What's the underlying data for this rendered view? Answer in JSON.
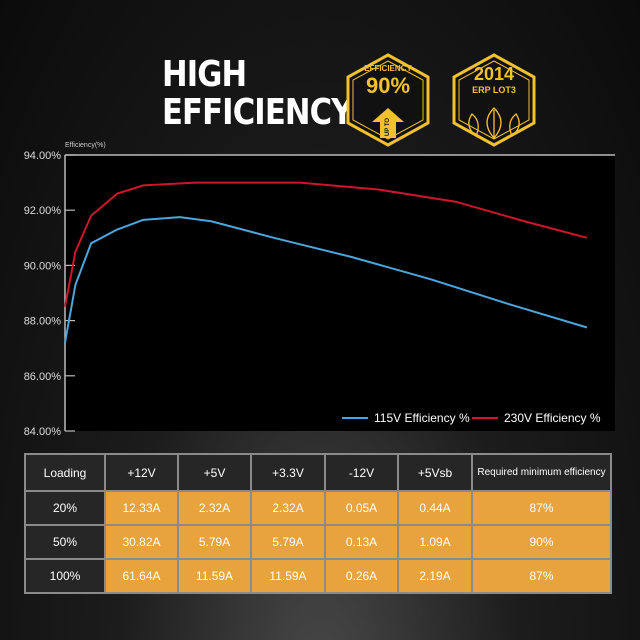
{
  "header": {
    "title_line1": "HIGH",
    "title_line2": "EFFICIENCY"
  },
  "badges": [
    {
      "top": "EFFICIENCY",
      "value": "90%",
      "arrow": "UP TO",
      "color": "#f2c12e"
    },
    {
      "top": "2014",
      "sub": "ERP LOT3",
      "icon": "leaf-icon",
      "color": "#f2c12e"
    }
  ],
  "chart_data": {
    "type": "line",
    "ylabel": "Efficiency(%)",
    "ylim": [
      84,
      94
    ],
    "yticks": [
      "84.00%",
      "86.00%",
      "88.00%",
      "90.00%",
      "92.00%",
      "94.00%"
    ],
    "grid": false,
    "legend": "bottom-right",
    "series": [
      {
        "name": "115V Efficiency %",
        "color": "#4aa6dc",
        "points": [
          [
            0,
            87.2
          ],
          [
            2,
            89.3
          ],
          [
            5,
            90.8
          ],
          [
            10,
            91.3
          ],
          [
            15,
            91.65
          ],
          [
            22,
            91.75
          ],
          [
            28,
            91.6
          ],
          [
            40,
            91.0
          ],
          [
            55,
            90.3
          ],
          [
            70,
            89.5
          ],
          [
            85,
            88.6
          ],
          [
            100,
            87.75
          ]
        ]
      },
      {
        "name": "230V Efficiency %",
        "color": "#d0152b",
        "points": [
          [
            0,
            88.5
          ],
          [
            2,
            90.5
          ],
          [
            5,
            91.8
          ],
          [
            10,
            92.6
          ],
          [
            15,
            92.9
          ],
          [
            25,
            93.0
          ],
          [
            45,
            93.0
          ],
          [
            60,
            92.75
          ],
          [
            75,
            92.3
          ],
          [
            88,
            91.6
          ],
          [
            100,
            91.0
          ]
        ]
      }
    ]
  },
  "table": {
    "headers": [
      "Loading",
      "+12V",
      "+5V",
      "+3.3V",
      "-12V",
      "+5Vsb",
      "Required minimum efficiency"
    ],
    "rows": [
      [
        "20%",
        "12.33A",
        "2.32A",
        "2.32A",
        "0.05A",
        "0.44A",
        "87%"
      ],
      [
        "50%",
        "30.82A",
        "5.79A",
        "5.79A",
        "0.13A",
        "1.09A",
        "90%"
      ],
      [
        "100%",
        "61.64A",
        "11.59A",
        "11.59A",
        "0.26A",
        "2.19A",
        "87%"
      ]
    ]
  }
}
